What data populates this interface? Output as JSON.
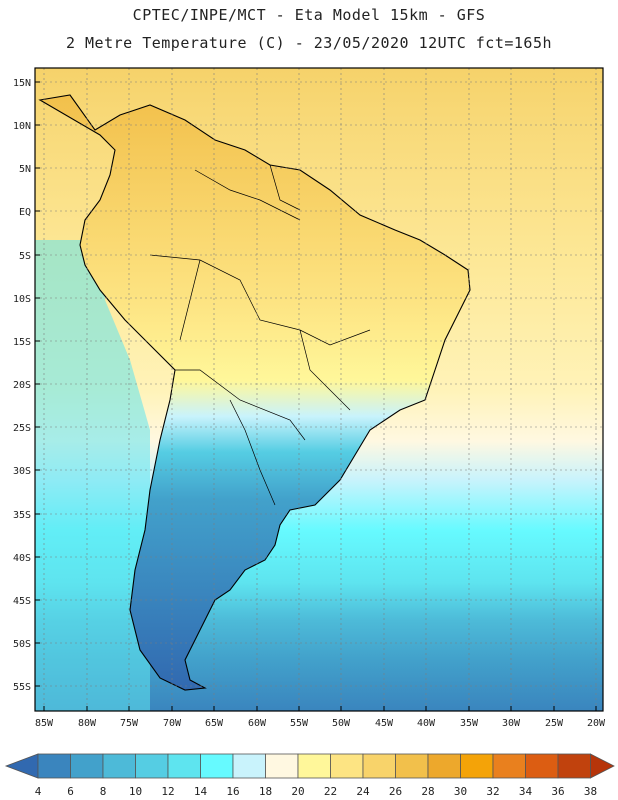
{
  "title_line1": "CPTEC/INPE/MCT -   Eta Model 15km - GFS",
  "title_line2": "2 Metre Temperature (C) - 23/05/2020 12UTC fct=165h",
  "lat_labels": [
    "15N",
    "10N",
    "5N",
    "EQ",
    "5S",
    "10S",
    "15S",
    "20S",
    "25S",
    "30S",
    "35S",
    "40S",
    "45S",
    "50S",
    "55S"
  ],
  "lon_labels": [
    "85W",
    "80W",
    "75W",
    "70W",
    "65W",
    "60W",
    "55W",
    "50W",
    "45W",
    "40W",
    "35W",
    "30W",
    "25W",
    "20W"
  ],
  "colorbar": {
    "values": [
      "4",
      "6",
      "8",
      "10",
      "12",
      "14",
      "16",
      "18",
      "20",
      "22",
      "24",
      "26",
      "28",
      "30",
      "32",
      "34",
      "36",
      "38"
    ],
    "colors": [
      "#3169b0",
      "#3a85be",
      "#42a1cb",
      "#4dbad8",
      "#55cde3",
      "#5ee4ef",
      "#66faff",
      "#c9f3fc",
      "#fff8e1",
      "#fff79a",
      "#fde483",
      "#f8d36a",
      "#f2c04b",
      "#eda82c",
      "#f4a308",
      "#e9801e",
      "#dc5d12",
      "#c1420d",
      "#b6350a"
    ]
  }
}
